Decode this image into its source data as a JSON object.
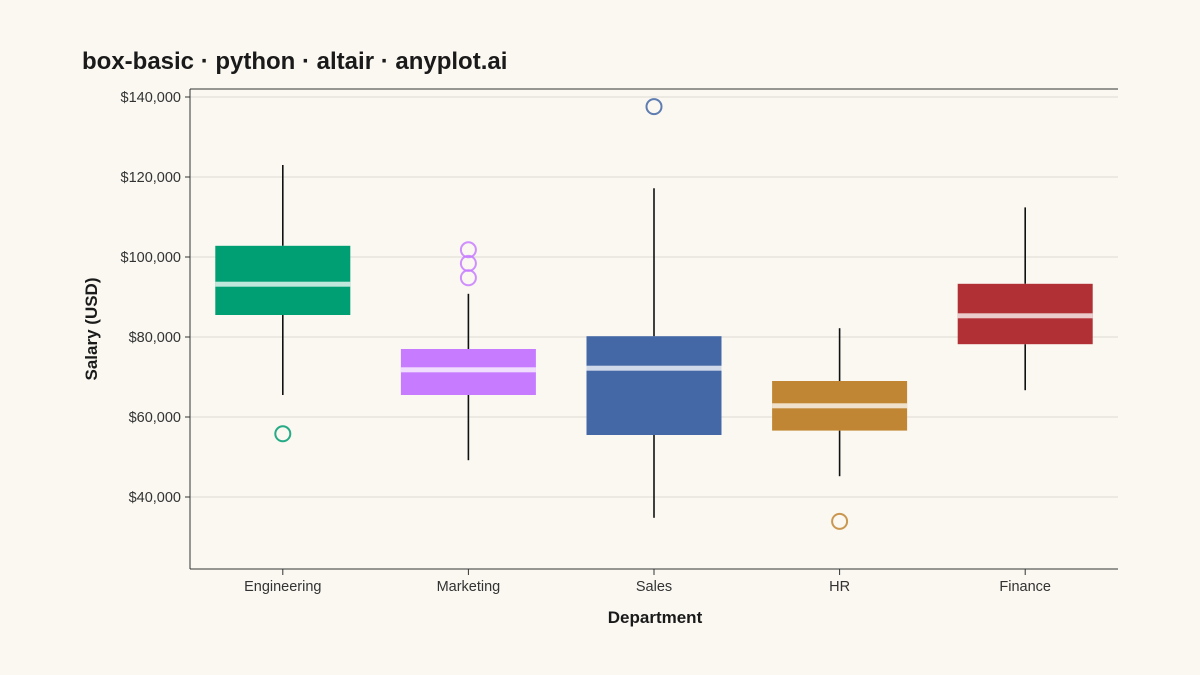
{
  "chart_data": {
    "type": "box",
    "title": "box-basic · python · altair · anyplot.ai",
    "xlabel": "Department",
    "ylabel": "Salary (USD)",
    "ylim": [
      22000,
      142000
    ],
    "y_ticks": [
      40000,
      60000,
      80000,
      100000,
      120000,
      140000
    ],
    "y_tick_labels": [
      "$40,000",
      "$60,000",
      "$80,000",
      "$100,000",
      "$120,000",
      "$140,000"
    ],
    "grid": true,
    "categories": [
      "Engineering",
      "Marketing",
      "Sales",
      "HR",
      "Finance"
    ],
    "series": [
      {
        "category": "Engineering",
        "color": "#009E73",
        "min": 65500,
        "q1": 85500,
        "median": 93200,
        "q3": 102800,
        "max": 123000,
        "outliers": [
          55800
        ]
      },
      {
        "category": "Marketing",
        "color": "#C77CFF",
        "min": 49200,
        "q1": 65500,
        "median": 71800,
        "q3": 77000,
        "max": 90800,
        "outliers": [
          94800,
          98400,
          101800
        ]
      },
      {
        "category": "Sales",
        "color": "#4467A6",
        "min": 34800,
        "q1": 55500,
        "median": 72200,
        "q3": 80200,
        "max": 117200,
        "outliers": [
          137600
        ]
      },
      {
        "category": "HR",
        "color": "#C18634",
        "min": 45200,
        "q1": 56600,
        "median": 62800,
        "q3": 69000,
        "max": 82200,
        "outliers": [
          33900
        ]
      },
      {
        "category": "Finance",
        "color": "#B03035",
        "min": 66700,
        "q1": 78200,
        "median": 85300,
        "q3": 93300,
        "max": 112400,
        "outliers": []
      }
    ]
  }
}
